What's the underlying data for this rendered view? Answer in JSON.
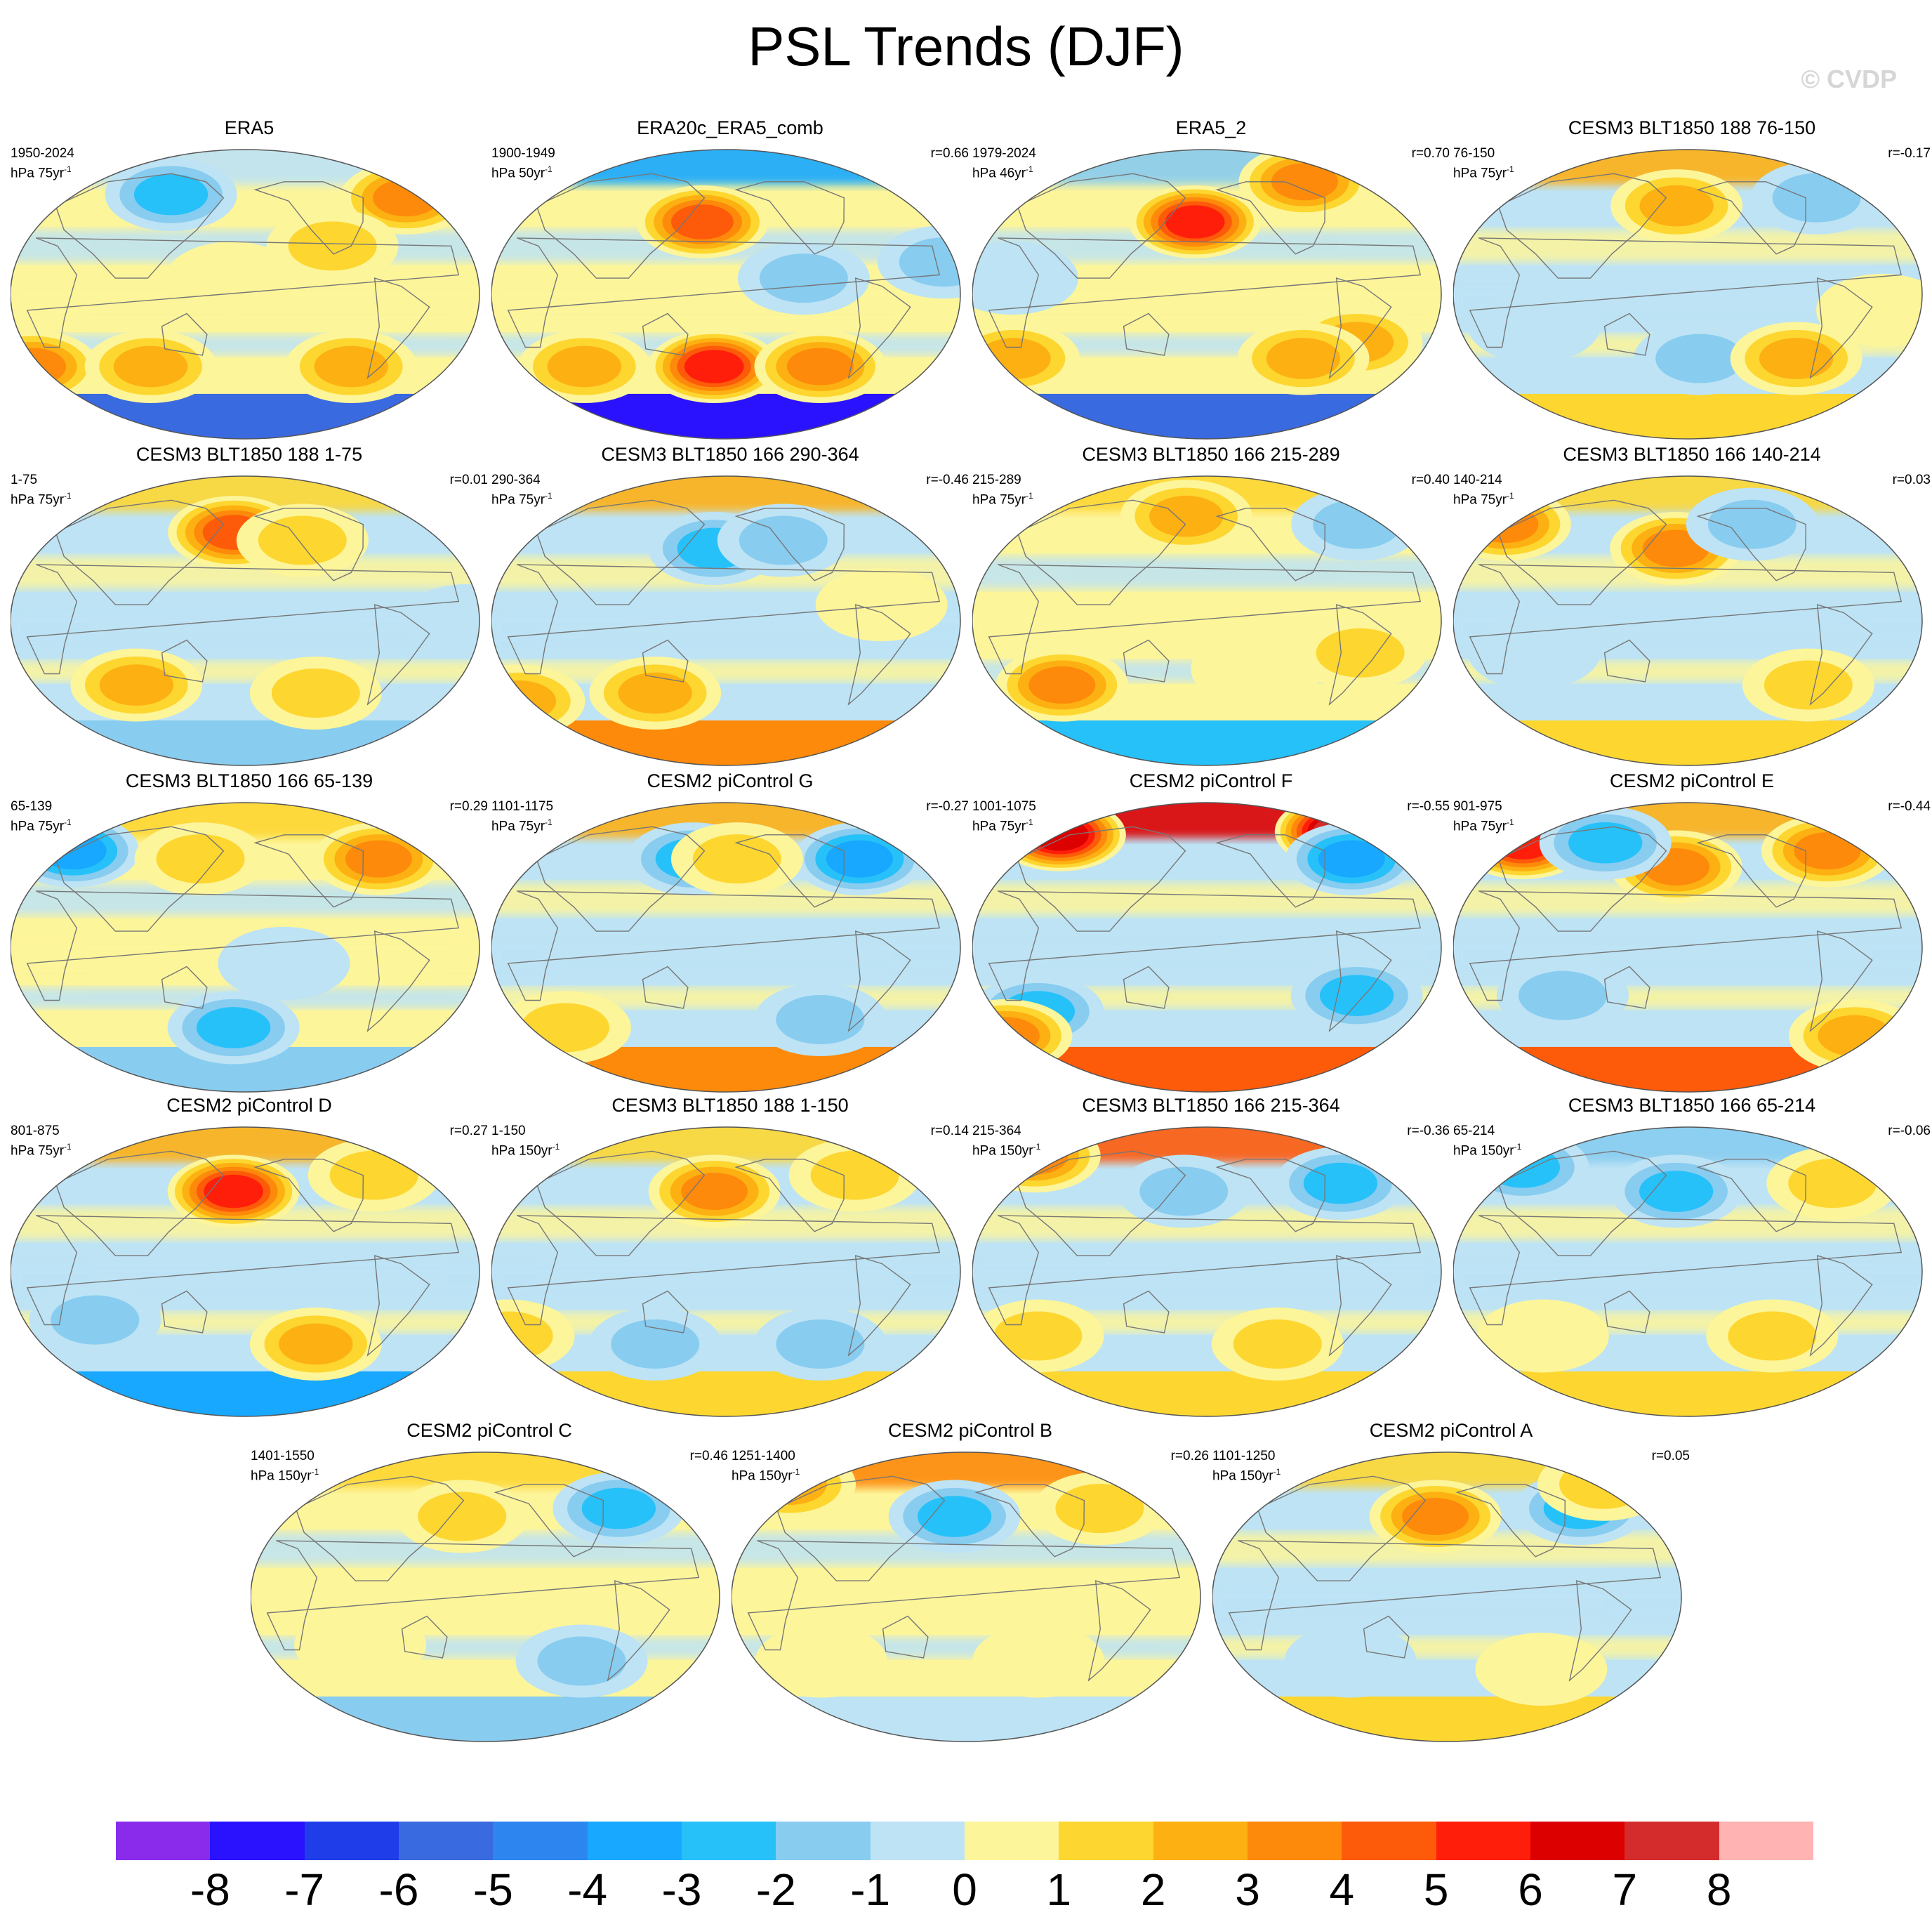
{
  "title": "PSL Trends (DJF)",
  "copyright": "© CVDP",
  "chart_data": {
    "type": "contour-map-panels",
    "projection": "robinson",
    "variable": "PSL",
    "season": "DJF",
    "panels": [
      {
        "title": "ERA5",
        "period": "1950-2024",
        "units": "hPa 75yr",
        "r": "",
        "features": [
          {
            "lon": -30,
            "lat": 60,
            "v": 4
          },
          {
            "lon": 110,
            "lat": 62,
            "v": -3
          },
          {
            "lon": 0,
            "lat": -45,
            "v": 4
          },
          {
            "lon": 100,
            "lat": -45,
            "v": 3
          },
          {
            "lon": -90,
            "lat": -45,
            "v": 3
          },
          {
            "lon": -110,
            "lat": 30,
            "v": 2
          },
          {
            "lon": 170,
            "lat": 10,
            "v": 1
          }
        ],
        "polar_south": -6,
        "polar_north": -1,
        "base": 1
      },
      {
        "title": "ERA20c_ERA5_comb",
        "period": "1900-1949",
        "units": "hPa 50yr",
        "r": "r=0.66",
        "features": [
          {
            "lon": 160,
            "lat": 45,
            "v": 5
          },
          {
            "lon": 170,
            "lat": -45,
            "v": 6
          },
          {
            "lon": -100,
            "lat": -45,
            "v": 4
          },
          {
            "lon": 60,
            "lat": -45,
            "v": 3
          },
          {
            "lon": -120,
            "lat": 10,
            "v": -2
          },
          {
            "lon": -10,
            "lat": 20,
            "v": -2
          }
        ],
        "polar_south": -8,
        "polar_north": -4,
        "base": 1
      },
      {
        "title": "ERA5_2",
        "period": "1979-2024",
        "units": "hPa 46yr",
        "r": "r=0.70",
        "features": [
          {
            "lon": 170,
            "lat": 45,
            "v": 6
          },
          {
            "lon": -80,
            "lat": 70,
            "v": 4
          },
          {
            "lon": 20,
            "lat": -40,
            "v": 3
          },
          {
            "lon": -60,
            "lat": -30,
            "v": 3
          },
          {
            "lon": -100,
            "lat": -40,
            "v": 3
          },
          {
            "lon": 30,
            "lat": 10,
            "v": -1
          }
        ],
        "polar_south": -6,
        "polar_north": -2,
        "base": 1
      },
      {
        "title": "CESM3 BLT1850 188 76-150",
        "period": "76-150",
        "units": "hPa 75yr",
        "r": "r=-0.17",
        "features": [
          {
            "lon": 170,
            "lat": 55,
            "v": 3
          },
          {
            "lon": -60,
            "lat": 60,
            "v": -2
          },
          {
            "lon": -170,
            "lat": -40,
            "v": -2
          },
          {
            "lon": -90,
            "lat": -40,
            "v": 3
          },
          {
            "lon": 60,
            "lat": -20,
            "v": -1
          },
          {
            "lon": -30,
            "lat": -10,
            "v": 1
          }
        ],
        "polar_south": 1,
        "polar_north": 2,
        "base": -1
      },
      {
        "title": "CESM3 BLT1850 188 1-75",
        "period": "1-75",
        "units": "hPa 75yr",
        "r": "r=0.01",
        "features": [
          {
            "lon": 170,
            "lat": 55,
            "v": 5
          },
          {
            "lon": -130,
            "lat": 50,
            "v": 2
          },
          {
            "lon": 90,
            "lat": -40,
            "v": 3
          },
          {
            "lon": -120,
            "lat": -45,
            "v": 2
          },
          {
            "lon": -10,
            "lat": 0,
            "v": -1
          }
        ],
        "polar_south": -2,
        "polar_north": 1,
        "base": -1
      },
      {
        "title": "CESM3 BLT1850 166 290-364",
        "period": "290-364",
        "units": "hPa 75yr",
        "r": "r=-0.46",
        "features": [
          {
            "lon": 170,
            "lat": 45,
            "v": -3
          },
          {
            "lon": -130,
            "lat": 50,
            "v": -2
          },
          {
            "lon": 0,
            "lat": -50,
            "v": 3
          },
          {
            "lon": 120,
            "lat": -45,
            "v": 3
          },
          {
            "lon": -60,
            "lat": 10,
            "v": 1
          }
        ],
        "polar_south": 3,
        "polar_north": 2,
        "base": -1
      },
      {
        "title": "CESM3 BLT1850 166 215-289",
        "period": "215-289",
        "units": "hPa 75yr",
        "r": "r=0.40",
        "features": [
          {
            "lon": 60,
            "lat": -40,
            "v": 4
          },
          {
            "lon": -40,
            "lat": 60,
            "v": -2
          },
          {
            "lon": 160,
            "lat": 65,
            "v": 3
          },
          {
            "lon": -140,
            "lat": -30,
            "v": 1
          },
          {
            "lon": -60,
            "lat": -20,
            "v": 2
          }
        ],
        "polar_south": -3,
        "polar_north": 1,
        "base": 1
      },
      {
        "title": "CESM3 BLT1850 166 140-214",
        "period": "140-214",
        "units": "hPa 75yr",
        "r": "r=0.03",
        "features": [
          {
            "lon": 10,
            "lat": 60,
            "v": 4
          },
          {
            "lon": 170,
            "lat": 45,
            "v": 4
          },
          {
            "lon": -120,
            "lat": 60,
            "v": -2
          },
          {
            "lon": -80,
            "lat": -40,
            "v": 2
          },
          {
            "lon": 60,
            "lat": -20,
            "v": -1
          }
        ],
        "polar_south": 1,
        "polar_north": 1,
        "base": -1
      },
      {
        "title": "CESM3 BLT1850 166 65-139",
        "period": "65-139",
        "units": "hPa 75yr",
        "r": "r=0.29",
        "features": [
          {
            "lon": -60,
            "lat": 55,
            "v": 4
          },
          {
            "lon": 20,
            "lat": 60,
            "v": -4
          },
          {
            "lon": 140,
            "lat": 55,
            "v": 2
          },
          {
            "lon": 170,
            "lat": -50,
            "v": -3
          },
          {
            "lon": -150,
            "lat": -10,
            "v": -1
          }
        ],
        "polar_south": -2,
        "polar_north": 1,
        "base": 1
      },
      {
        "title": "CESM2 piControl G",
        "period": "1101-1175",
        "units": "hPa 75yr",
        "r": "r=-0.27",
        "features": [
          {
            "lon": -60,
            "lat": 55,
            "v": -4
          },
          {
            "lon": 150,
            "lat": 55,
            "v": -3
          },
          {
            "lon": -170,
            "lat": 55,
            "v": 2
          },
          {
            "lon": -100,
            "lat": -45,
            "v": -2
          },
          {
            "lon": 40,
            "lat": -50,
            "v": 2
          }
        ],
        "polar_south": 3,
        "polar_north": 2,
        "base": -1
      },
      {
        "title": "CESM2 piControl F",
        "period": "1001-1075",
        "units": "hPa 75yr",
        "r": "r=-0.55",
        "features": [
          {
            "lon": 30,
            "lat": 70,
            "v": 7
          },
          {
            "lon": -40,
            "lat": 72,
            "v": 8
          },
          {
            "lon": -50,
            "lat": 55,
            "v": -4
          },
          {
            "lon": -60,
            "lat": -30,
            "v": -3
          },
          {
            "lon": 40,
            "lat": -40,
            "v": -3
          },
          {
            "lon": 0,
            "lat": -55,
            "v": 4
          }
        ],
        "polar_south": 4,
        "polar_north": 6,
        "base": -1
      },
      {
        "title": "CESM2 piControl E",
        "period": "901-975",
        "units": "hPa 75yr",
        "r": "r=-0.44",
        "features": [
          {
            "lon": 20,
            "lat": 65,
            "v": 6
          },
          {
            "lon": 170,
            "lat": 50,
            "v": 4
          },
          {
            "lon": -50,
            "lat": 60,
            "v": 4
          },
          {
            "lon": 100,
            "lat": 65,
            "v": -3
          },
          {
            "lon": -30,
            "lat": -55,
            "v": 3
          },
          {
            "lon": 80,
            "lat": -30,
            "v": -2
          }
        ],
        "polar_south": 4,
        "polar_north": 2,
        "base": -1
      },
      {
        "title": "CESM2 piControl D",
        "period": "801-875",
        "units": "hPa 75yr",
        "r": "r=0.27",
        "features": [
          {
            "lon": 170,
            "lat": 50,
            "v": 6
          },
          {
            "lon": -60,
            "lat": 60,
            "v": 2
          },
          {
            "lon": -120,
            "lat": -45,
            "v": 3
          },
          {
            "lon": 60,
            "lat": -30,
            "v": -2
          }
        ],
        "polar_south": -4,
        "polar_north": 2,
        "base": -1
      },
      {
        "title": "CESM3 BLT1850 188 1-150",
        "period": "1-150",
        "units": "hPa 150yr",
        "r": "r=0.14",
        "features": [
          {
            "lon": 170,
            "lat": 50,
            "v": 4
          },
          {
            "lon": -60,
            "lat": 60,
            "v": 2
          },
          {
            "lon": 120,
            "lat": -45,
            "v": -2
          },
          {
            "lon": -100,
            "lat": -45,
            "v": -2
          },
          {
            "lon": 0,
            "lat": -40,
            "v": 2
          }
        ],
        "polar_south": 1,
        "polar_north": 1,
        "base": -1
      },
      {
        "title": "CESM3 BLT1850 166 215-364",
        "period": "215-364",
        "units": "hPa 150yr",
        "r": "r=-0.36",
        "features": [
          {
            "lon": 0,
            "lat": 72,
            "v": 4
          },
          {
            "lon": -60,
            "lat": 55,
            "v": -3
          },
          {
            "lon": 160,
            "lat": 50,
            "v": -2
          },
          {
            "lon": 40,
            "lat": -40,
            "v": 2
          },
          {
            "lon": -120,
            "lat": -45,
            "v": 2
          }
        ],
        "polar_south": 1,
        "polar_north": 4,
        "base": -1
      },
      {
        "title": "CESM3 BLT1850 166 65-214",
        "period": "65-214",
        "units": "hPa 150yr",
        "r": "r=-0.06",
        "features": [
          {
            "lon": 20,
            "lat": 65,
            "v": -3
          },
          {
            "lon": 170,
            "lat": 50,
            "v": -3
          },
          {
            "lon": -50,
            "lat": 55,
            "v": 2
          },
          {
            "lon": -110,
            "lat": -40,
            "v": 2
          },
          {
            "lon": 60,
            "lat": -40,
            "v": 1
          }
        ],
        "polar_south": 1,
        "polar_north": -2,
        "base": -1
      },
      {
        "title": "CESM2 piControl C",
        "period": "1401-1550",
        "units": "hPa 150yr",
        "r": "r=0.46",
        "features": [
          {
            "lon": -60,
            "lat": 55,
            "v": -3
          },
          {
            "lon": 160,
            "lat": 50,
            "v": 2
          },
          {
            "lon": 80,
            "lat": -30,
            "v": 1
          },
          {
            "lon": -100,
            "lat": -40,
            "v": -2
          }
        ],
        "polar_south": -2,
        "polar_north": 1,
        "base": 1
      },
      {
        "title": "CESM2 piControl B",
        "period": "1251-1400",
        "units": "hPa 150yr",
        "r": "r=0.26",
        "features": [
          {
            "lon": 170,
            "lat": 50,
            "v": -3
          },
          {
            "lon": 0,
            "lat": 70,
            "v": 3
          },
          {
            "lon": -60,
            "lat": 55,
            "v": 2
          },
          {
            "lon": -120,
            "lat": -40,
            "v": 1
          },
          {
            "lon": 60,
            "lat": -40,
            "v": 1
          }
        ],
        "polar_south": -1,
        "polar_north": 3,
        "base": 1
      },
      {
        "title": "CESM2 piControl A",
        "period": "1101-1250",
        "units": "hPa 150yr",
        "r": "r=0.05",
        "features": [
          {
            "lon": 170,
            "lat": 50,
            "v": 4
          },
          {
            "lon": -60,
            "lat": 55,
            "v": -3
          },
          {
            "lon": -20,
            "lat": 70,
            "v": 2
          },
          {
            "lon": 100,
            "lat": -40,
            "v": -1
          },
          {
            "lon": -100,
            "lat": -45,
            "v": 1
          }
        ],
        "polar_south": 1,
        "polar_north": 1,
        "base": -1
      }
    ],
    "colorbar": {
      "levels": [
        -8,
        -7,
        -6,
        -5,
        -4,
        -3,
        -2,
        -1,
        0,
        1,
        2,
        3,
        4,
        5,
        6,
        7,
        8
      ],
      "labels": [
        "-8",
        "-7",
        "-6",
        "-5",
        "-4",
        "-3",
        "-2",
        "-1",
        "0",
        "1",
        "2",
        "3",
        "4",
        "5",
        "6",
        "7",
        "8"
      ],
      "colors": [
        "#8a2bec",
        "#2a12ff",
        "#1f3eea",
        "#3a6ae0",
        "#2d86f0",
        "#18a8ff",
        "#27c1f9",
        "#88ccf0",
        "#bde3f5",
        "#fdf59a",
        "#fdd630",
        "#fdb012",
        "#fd8a0a",
        "#fd5a0a",
        "#ff1e0a",
        "#dd0000",
        "#d42c2c",
        "#ffb3b3"
      ]
    }
  }
}
